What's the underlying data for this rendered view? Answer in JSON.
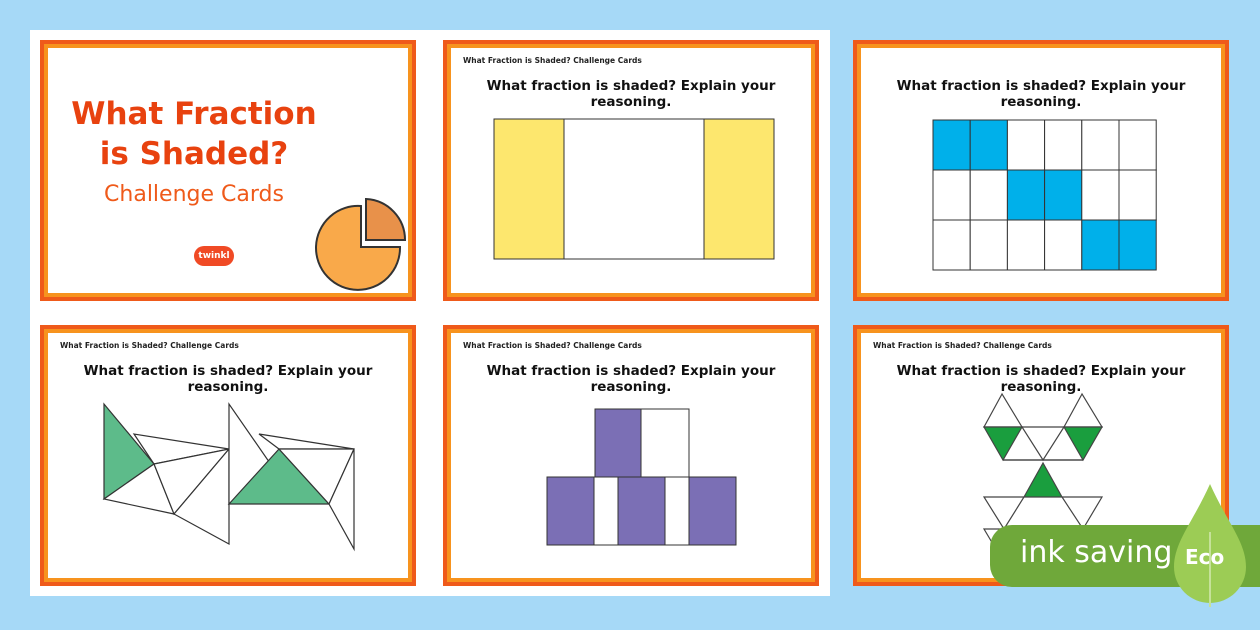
{
  "cover": {
    "title_line1": "What Fraction",
    "title_line2": "is Shaded?",
    "subtitle": "Challenge Cards",
    "logo": "twinkl"
  },
  "card_header": "What Fraction is Shaded? Challenge Cards",
  "question": "What fraction is shaded? Explain your reasoning.",
  "badge": {
    "label": "ink saving",
    "eco": "Eco"
  },
  "colors": {
    "background": "#a6d9f7",
    "border": "#ef5a1a",
    "yellow": "#fde76e",
    "blue": "#00b0ea",
    "green_light": "#5dbb8a",
    "purple": "#7b6fb5",
    "green": "#1a9e3e",
    "badge": "#6fa83a"
  }
}
